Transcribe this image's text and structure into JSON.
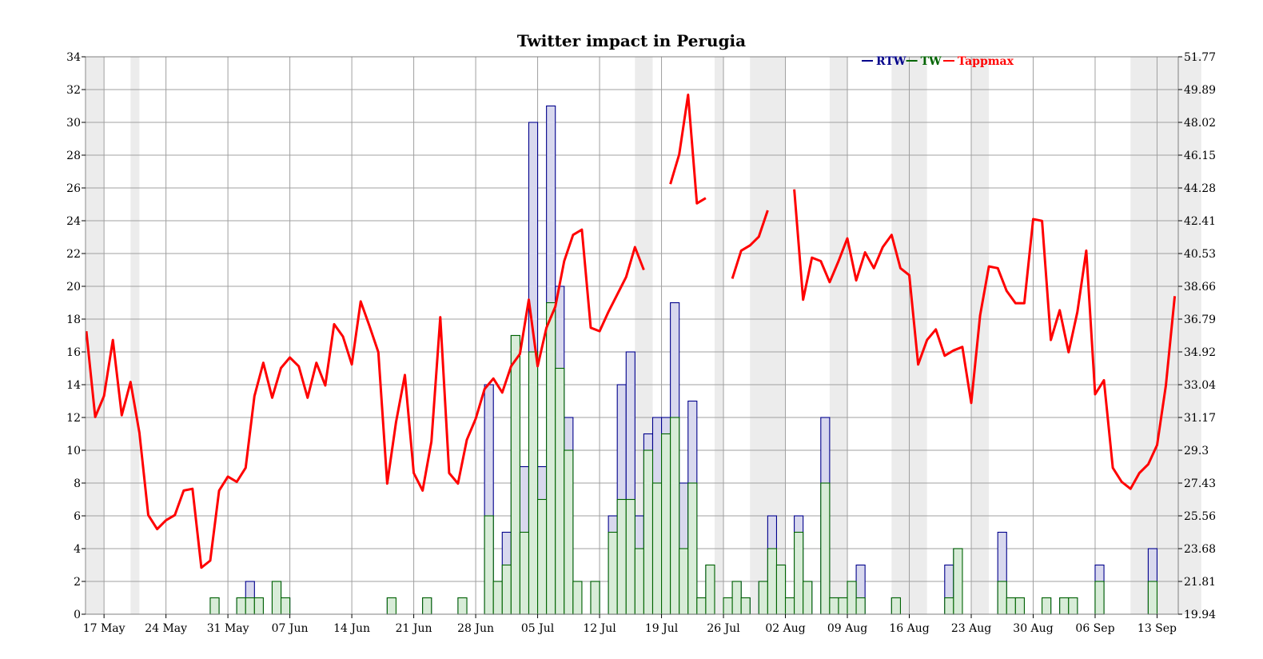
{
  "chart_data": {
    "type": "bar",
    "title": "Twitter impact in Perugia",
    "start_date": "2013-05-15",
    "x_tick_labels": [
      "17 May",
      "24 May",
      "31 May",
      "07 Jun",
      "14 Jun",
      "21 Jun",
      "28 Jun",
      "05 Jul",
      "12 Jul",
      "19 Jul",
      "26 Jul",
      "02 Aug",
      "09 Aug",
      "16 Aug",
      "23 Aug",
      "30 Aug",
      "06 Sep",
      "13 Sep"
    ],
    "y_left_ticks": [
      "0",
      "2",
      "4",
      "6",
      "8",
      "10",
      "12",
      "14",
      "16",
      "18",
      "20",
      "22",
      "24",
      "26",
      "28",
      "30",
      "32",
      "34"
    ],
    "y_right_ticks": [
      "19.94",
      "21.81",
      "23.68",
      "25.56",
      "27.43",
      "29.3",
      "31.17",
      "33.04",
      "34.92",
      "36.79",
      "38.66",
      "40.53",
      "42.41",
      "44.28",
      "46.15",
      "48.02",
      "49.89",
      "51.77"
    ],
    "ylim_left": [
      0,
      34
    ],
    "ylim_right": [
      19.94,
      51.77
    ],
    "grid": true,
    "legend_position": "top-right",
    "legend": [
      {
        "name": "RTW",
        "color": "#00008b"
      },
      {
        "name": "TW",
        "color": "#006400"
      },
      {
        "name": "Tappmax",
        "color": "#ff0000"
      }
    ],
    "weekend_shading": [
      [
        0,
        2
      ],
      [
        5,
        6
      ],
      [
        62,
        64
      ],
      [
        63,
        64
      ],
      [
        71,
        72
      ],
      [
        75,
        79
      ],
      [
        84,
        86
      ],
      [
        91,
        95
      ],
      [
        100,
        102
      ],
      [
        118,
        126
      ]
    ],
    "series": [
      {
        "name": "RTW",
        "kind": "step-bar",
        "color": "#00008b",
        "fill": "#d8d8ee",
        "points": [
          [
            14,
            1
          ],
          [
            17,
            1
          ],
          [
            18,
            2
          ],
          [
            19,
            1
          ],
          [
            21,
            2
          ],
          [
            22,
            1
          ],
          [
            34,
            1
          ],
          [
            38,
            1
          ],
          [
            42,
            1
          ],
          [
            45,
            14
          ],
          [
            46,
            2
          ],
          [
            47,
            5
          ],
          [
            48,
            17
          ],
          [
            49,
            9
          ],
          [
            50,
            30
          ],
          [
            51,
            9
          ],
          [
            52,
            31
          ],
          [
            53,
            20
          ],
          [
            54,
            12
          ],
          [
            55,
            2
          ],
          [
            57,
            2
          ],
          [
            59,
            6
          ],
          [
            60,
            14
          ],
          [
            61,
            16
          ],
          [
            62,
            6
          ],
          [
            63,
            11
          ],
          [
            64,
            12
          ],
          [
            65,
            12
          ],
          [
            66,
            19
          ],
          [
            67,
            8
          ],
          [
            68,
            13
          ],
          [
            69,
            1
          ],
          [
            70,
            3
          ],
          [
            72,
            1
          ],
          [
            73,
            2
          ],
          [
            74,
            1
          ],
          [
            76,
            2
          ],
          [
            77,
            6
          ],
          [
            78,
            3
          ],
          [
            79,
            1
          ],
          [
            80,
            6
          ],
          [
            81,
            2
          ],
          [
            83,
            12
          ],
          [
            84,
            1
          ],
          [
            85,
            1
          ],
          [
            86,
            2
          ],
          [
            87,
            3
          ],
          [
            91,
            1
          ],
          [
            97,
            3
          ],
          [
            98,
            4
          ],
          [
            103,
            5
          ],
          [
            104,
            1
          ],
          [
            105,
            1
          ],
          [
            108,
            1
          ],
          [
            110,
            1
          ],
          [
            111,
            1
          ],
          [
            114,
            3
          ],
          [
            120,
            4
          ]
        ]
      },
      {
        "name": "TW",
        "kind": "step-bar",
        "color": "#006400",
        "fill": "#d8ecd8",
        "points": [
          [
            14,
            1
          ],
          [
            17,
            1
          ],
          [
            18,
            1
          ],
          [
            19,
            1
          ],
          [
            21,
            2
          ],
          [
            22,
            1
          ],
          [
            34,
            1
          ],
          [
            38,
            1
          ],
          [
            42,
            1
          ],
          [
            45,
            6
          ],
          [
            46,
            2
          ],
          [
            47,
            3
          ],
          [
            48,
            17
          ],
          [
            49,
            5
          ],
          [
            50,
            16
          ],
          [
            51,
            7
          ],
          [
            52,
            19
          ],
          [
            53,
            15
          ],
          [
            54,
            10
          ],
          [
            55,
            2
          ],
          [
            57,
            2
          ],
          [
            59,
            5
          ],
          [
            60,
            7
          ],
          [
            61,
            7
          ],
          [
            62,
            4
          ],
          [
            63,
            10
          ],
          [
            64,
            8
          ],
          [
            65,
            11
          ],
          [
            66,
            12
          ],
          [
            67,
            4
          ],
          [
            68,
            8
          ],
          [
            69,
            1
          ],
          [
            70,
            3
          ],
          [
            72,
            1
          ],
          [
            73,
            2
          ],
          [
            74,
            1
          ],
          [
            76,
            2
          ],
          [
            77,
            4
          ],
          [
            78,
            3
          ],
          [
            79,
            1
          ],
          [
            80,
            5
          ],
          [
            81,
            2
          ],
          [
            83,
            8
          ],
          [
            84,
            1
          ],
          [
            85,
            1
          ],
          [
            86,
            2
          ],
          [
            87,
            1
          ],
          [
            91,
            1
          ],
          [
            97,
            1
          ],
          [
            98,
            4
          ],
          [
            103,
            2
          ],
          [
            104,
            1
          ],
          [
            105,
            1
          ],
          [
            108,
            1
          ],
          [
            110,
            1
          ],
          [
            111,
            1
          ],
          [
            114,
            2
          ],
          [
            120,
            2
          ]
        ]
      },
      {
        "name": "Tappmax",
        "kind": "line",
        "color": "#ff0000",
        "segments": [
          [
            [
              0,
              36.1
            ],
            [
              1,
              31.2
            ],
            [
              2,
              32.4
            ],
            [
              3,
              35.6
            ],
            [
              4,
              31.3
            ],
            [
              5,
              33.2
            ],
            [
              6,
              30.3
            ],
            [
              7,
              25.6
            ],
            [
              8,
              24.8
            ],
            [
              9,
              25.3
            ],
            [
              10,
              25.6
            ],
            [
              11,
              27.0
            ],
            [
              12,
              27.1
            ],
            [
              13,
              22.6
            ],
            [
              14,
              23.0
            ],
            [
              15,
              27.0
            ],
            [
              16,
              27.8
            ],
            [
              17,
              27.5
            ],
            [
              18,
              28.3
            ],
            [
              19,
              32.4
            ],
            [
              20,
              34.3
            ],
            [
              21,
              32.3
            ],
            [
              22,
              34.0
            ],
            [
              23,
              34.6
            ],
            [
              24,
              34.1
            ],
            [
              25,
              32.3
            ],
            [
              26,
              34.3
            ],
            [
              27,
              33.0
            ],
            [
              28,
              36.5
            ],
            [
              29,
              35.8
            ],
            [
              30,
              34.2
            ],
            [
              31,
              37.8
            ],
            [
              32,
              36.4
            ],
            [
              33,
              34.9
            ],
            [
              34,
              27.4
            ],
            [
              35,
              30.9
            ],
            [
              36,
              33.6
            ],
            [
              37,
              28.0
            ],
            [
              38,
              27.0
            ],
            [
              39,
              29.8
            ],
            [
              40,
              36.9
            ],
            [
              41,
              28.0
            ],
            [
              42,
              27.4
            ],
            [
              43,
              29.9
            ],
            [
              44,
              31.1
            ],
            [
              45,
              32.8
            ],
            [
              46,
              33.4
            ],
            [
              47,
              32.6
            ],
            [
              48,
              34.1
            ],
            [
              49,
              34.8
            ],
            [
              50,
              37.9
            ],
            [
              51,
              34.1
            ],
            [
              52,
              36.3
            ],
            [
              53,
              37.5
            ],
            [
              54,
              40.1
            ],
            [
              55,
              41.6
            ],
            [
              56,
              41.9
            ],
            [
              57,
              36.3
            ],
            [
              58,
              36.1
            ],
            [
              59,
              37.2
            ],
            [
              60,
              38.2
            ],
            [
              61,
              39.2
            ],
            [
              62,
              40.9
            ],
            [
              63,
              39.6
            ]
          ],
          [
            [
              66,
              44.5
            ],
            [
              67,
              46.2
            ],
            [
              68,
              49.6
            ],
            [
              69,
              43.4
            ],
            [
              70,
              43.7
            ]
          ],
          [
            [
              73,
              39.1
            ],
            [
              74,
              40.7
            ],
            [
              75,
              41.0
            ],
            [
              76,
              41.5
            ],
            [
              77,
              43.0
            ]
          ],
          [
            [
              80,
              44.2
            ],
            [
              81,
              37.9
            ],
            [
              82,
              40.3
            ],
            [
              83,
              40.1
            ],
            [
              84,
              38.9
            ],
            [
              85,
              40.1
            ],
            [
              86,
              41.4
            ],
            [
              87,
              39.0
            ],
            [
              88,
              40.6
            ],
            [
              89,
              39.7
            ],
            [
              90,
              40.9
            ],
            [
              91,
              41.6
            ],
            [
              92,
              39.7
            ],
            [
              93,
              39.3
            ],
            [
              94,
              34.2
            ],
            [
              95,
              35.6
            ],
            [
              96,
              36.2
            ],
            [
              97,
              34.7
            ],
            [
              98,
              35.0
            ],
            [
              99,
              35.2
            ],
            [
              100,
              32.0
            ],
            [
              101,
              37.0
            ],
            [
              102,
              39.8
            ],
            [
              103,
              39.7
            ],
            [
              104,
              38.4
            ],
            [
              105,
              37.7
            ],
            [
              106,
              37.7
            ],
            [
              107,
              42.5
            ],
            [
              108,
              42.4
            ],
            [
              109,
              35.6
            ],
            [
              110,
              37.3
            ],
            [
              111,
              34.9
            ],
            [
              112,
              37.2
            ],
            [
              113,
              40.7
            ],
            [
              114,
              32.5
            ],
            [
              115,
              33.3
            ],
            [
              116,
              28.3
            ],
            [
              117,
              27.5
            ],
            [
              118,
              27.1
            ],
            [
              119,
              28.0
            ],
            [
              120,
              28.5
            ],
            [
              121,
              29.6
            ],
            [
              122,
              33.0
            ],
            [
              123,
              38.1
            ]
          ]
        ]
      }
    ]
  }
}
